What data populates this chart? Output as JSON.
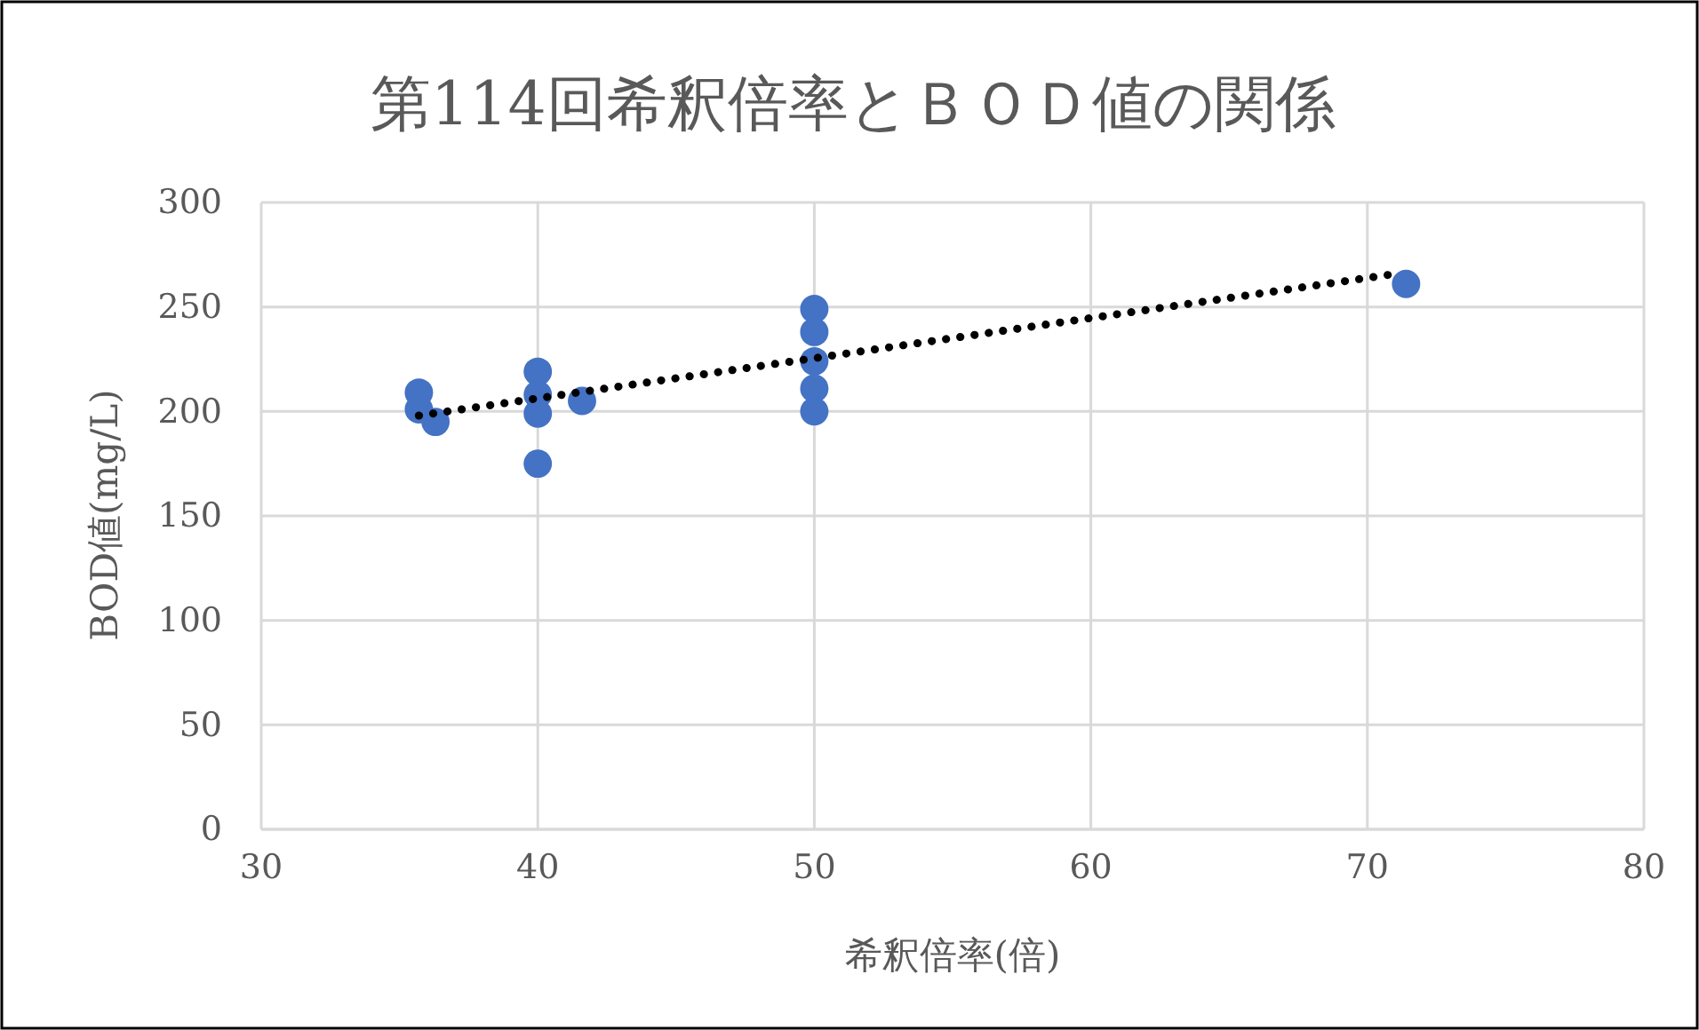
{
  "chart_data": {
    "type": "scatter",
    "title": "第114回希釈倍率とＢＯＤ値の関係",
    "xlabel": "希釈倍率(倍)",
    "ylabel": "BOD値(mg/L)",
    "xlim": [
      30,
      80
    ],
    "xticks": [
      30,
      40,
      50,
      60,
      70,
      80
    ],
    "ylim": [
      0,
      300
    ],
    "yticks": [
      0,
      50,
      100,
      150,
      200,
      250,
      300
    ],
    "grid": true,
    "marker": "circle",
    "series": [
      {
        "color": "#4472c4",
        "x": [
          35.7,
          35.7,
          36.3,
          40,
          40,
          40,
          40,
          41.6,
          50,
          50,
          50,
          50,
          50,
          71.4
        ],
        "values": [
          209,
          201,
          195,
          219,
          208,
          199,
          175,
          205,
          249,
          238,
          224,
          211,
          200,
          261
        ]
      },
      {
        "type": "line",
        "color": "#000000",
        "line_style": "dotted",
        "marker": "none",
        "x": [
          35.7,
          71.1
        ],
        "values": [
          198,
          266
        ]
      }
    ]
  }
}
